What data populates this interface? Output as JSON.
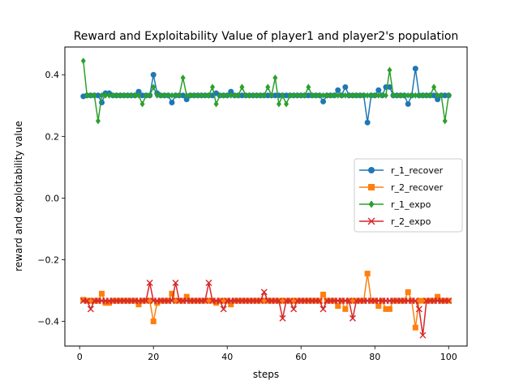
{
  "chart_data": {
    "type": "line",
    "title": "Reward and Exploitability Value of player1 and player2's population",
    "xlabel": "steps",
    "ylabel": "reward and exploitability value",
    "xlim": [
      -4,
      105
    ],
    "ylim": [
      -0.48,
      0.49
    ],
    "xticks": [
      0,
      20,
      40,
      60,
      80,
      100
    ],
    "yticks": [
      -0.4,
      -0.2,
      0.0,
      0.2,
      0.4
    ],
    "xtick_labels": [
      "0",
      "20",
      "40",
      "60",
      "80",
      "100"
    ],
    "ytick_labels": [
      "−0.4",
      "−0.2",
      "0.0",
      "0.2",
      "0.4"
    ],
    "grid": false,
    "legend_position": "center-right",
    "x_start": 1,
    "series": [
      {
        "name": "r_1_recover",
        "color": "#1f77b4",
        "marker": "circle",
        "values": [
          0.33,
          0.333,
          0.333,
          0.333,
          0.333,
          0.31,
          0.34,
          0.34,
          0.333,
          0.333,
          0.333,
          0.333,
          0.333,
          0.333,
          0.333,
          0.345,
          0.333,
          0.333,
          0.333,
          0.4,
          0.34,
          0.333,
          0.333,
          0.333,
          0.31,
          0.333,
          0.333,
          0.333,
          0.32,
          0.333,
          0.333,
          0.333,
          0.333,
          0.333,
          0.333,
          0.333,
          0.34,
          0.333,
          0.333,
          0.333,
          0.345,
          0.333,
          0.333,
          0.333,
          0.333,
          0.333,
          0.333,
          0.333,
          0.333,
          0.333,
          0.333,
          0.333,
          0.333,
          0.333,
          0.333,
          0.333,
          0.333,
          0.333,
          0.333,
          0.333,
          0.333,
          0.333,
          0.333,
          0.333,
          0.333,
          0.313,
          0.333,
          0.333,
          0.333,
          0.35,
          0.333,
          0.36,
          0.333,
          0.333,
          0.333,
          0.333,
          0.333,
          0.245,
          0.333,
          0.333,
          0.35,
          0.333,
          0.36,
          0.36,
          0.333,
          0.333,
          0.333,
          0.333,
          0.305,
          0.333,
          0.42,
          0.333,
          0.333,
          0.333,
          0.333,
          0.333,
          0.32,
          0.333,
          0.333,
          0.333
        ]
      },
      {
        "name": "r_2_recover",
        "color": "#ff7f0e",
        "marker": "square",
        "values": [
          -0.33,
          -0.333,
          -0.333,
          -0.333,
          -0.333,
          -0.31,
          -0.34,
          -0.34,
          -0.333,
          -0.333,
          -0.333,
          -0.333,
          -0.333,
          -0.333,
          -0.333,
          -0.345,
          -0.333,
          -0.333,
          -0.333,
          -0.4,
          -0.34,
          -0.333,
          -0.333,
          -0.333,
          -0.31,
          -0.333,
          -0.333,
          -0.333,
          -0.32,
          -0.333,
          -0.333,
          -0.333,
          -0.333,
          -0.333,
          -0.333,
          -0.333,
          -0.34,
          -0.333,
          -0.333,
          -0.333,
          -0.345,
          -0.333,
          -0.333,
          -0.333,
          -0.333,
          -0.333,
          -0.333,
          -0.333,
          -0.333,
          -0.333,
          -0.333,
          -0.333,
          -0.333,
          -0.333,
          -0.333,
          -0.333,
          -0.333,
          -0.333,
          -0.333,
          -0.333,
          -0.333,
          -0.333,
          -0.333,
          -0.333,
          -0.333,
          -0.313,
          -0.333,
          -0.333,
          -0.333,
          -0.35,
          -0.333,
          -0.36,
          -0.333,
          -0.333,
          -0.333,
          -0.333,
          -0.333,
          -0.245,
          -0.333,
          -0.333,
          -0.35,
          -0.333,
          -0.36,
          -0.36,
          -0.333,
          -0.333,
          -0.333,
          -0.333,
          -0.305,
          -0.333,
          -0.42,
          -0.333,
          -0.333,
          -0.333,
          -0.333,
          -0.333,
          -0.32,
          -0.333,
          -0.333,
          -0.333
        ]
      },
      {
        "name": "r_1_expo",
        "color": "#2ca02c",
        "marker": "diamond",
        "values": [
          0.445,
          0.333,
          0.333,
          0.333,
          0.25,
          0.333,
          0.333,
          0.333,
          0.333,
          0.333,
          0.333,
          0.333,
          0.333,
          0.333,
          0.333,
          0.333,
          0.305,
          0.333,
          0.333,
          0.36,
          0.333,
          0.333,
          0.333,
          0.333,
          0.333,
          0.333,
          0.333,
          0.39,
          0.333,
          0.333,
          0.333,
          0.333,
          0.333,
          0.333,
          0.333,
          0.36,
          0.305,
          0.333,
          0.333,
          0.333,
          0.333,
          0.333,
          0.333,
          0.36,
          0.333,
          0.333,
          0.333,
          0.333,
          0.333,
          0.333,
          0.36,
          0.333,
          0.39,
          0.305,
          0.333,
          0.305,
          0.333,
          0.333,
          0.333,
          0.333,
          0.333,
          0.36,
          0.333,
          0.333,
          0.333,
          0.333,
          0.333,
          0.333,
          0.333,
          0.333,
          0.333,
          0.333,
          0.333,
          0.333,
          0.333,
          0.333,
          0.333,
          0.333,
          0.333,
          0.333,
          0.333,
          0.333,
          0.333,
          0.415,
          0.333,
          0.333,
          0.333,
          0.333,
          0.333,
          0.333,
          0.333,
          0.333,
          0.333,
          0.333,
          0.333,
          0.36,
          0.333,
          0.333,
          0.25,
          0.333
        ]
      },
      {
        "name": "r_2_expo",
        "color": "#d62728",
        "marker": "x",
        "values": [
          -0.333,
          -0.333,
          -0.36,
          -0.333,
          -0.333,
          -0.333,
          -0.333,
          -0.333,
          -0.333,
          -0.333,
          -0.333,
          -0.333,
          -0.333,
          -0.333,
          -0.333,
          -0.333,
          -0.333,
          -0.333,
          -0.275,
          -0.333,
          -0.333,
          -0.333,
          -0.333,
          -0.333,
          -0.333,
          -0.275,
          -0.333,
          -0.333,
          -0.333,
          -0.333,
          -0.333,
          -0.333,
          -0.333,
          -0.333,
          -0.275,
          -0.333,
          -0.333,
          -0.333,
          -0.36,
          -0.333,
          -0.333,
          -0.333,
          -0.333,
          -0.333,
          -0.333,
          -0.333,
          -0.333,
          -0.333,
          -0.333,
          -0.305,
          -0.333,
          -0.333,
          -0.333,
          -0.333,
          -0.39,
          -0.333,
          -0.333,
          -0.36,
          -0.333,
          -0.333,
          -0.333,
          -0.333,
          -0.333,
          -0.333,
          -0.333,
          -0.36,
          -0.333,
          -0.333,
          -0.333,
          -0.333,
          -0.333,
          -0.333,
          -0.333,
          -0.39,
          -0.333,
          -0.333,
          -0.333,
          -0.333,
          -0.333,
          -0.333,
          -0.333,
          -0.333,
          -0.333,
          -0.333,
          -0.333,
          -0.333,
          -0.333,
          -0.333,
          -0.333,
          -0.333,
          -0.333,
          -0.36,
          -0.445,
          -0.333,
          -0.333,
          -0.333,
          -0.333,
          -0.333,
          -0.333,
          -0.333
        ]
      }
    ]
  }
}
